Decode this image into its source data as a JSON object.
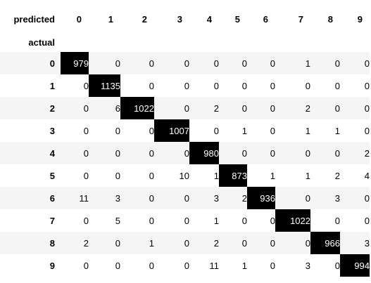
{
  "chart_data": {
    "type": "table",
    "corner_label_columns": "predicted",
    "corner_label_rows": "actual",
    "columns": [
      "0",
      "1",
      "2",
      "3",
      "4",
      "5",
      "6",
      "7",
      "8",
      "9"
    ],
    "rows": [
      "0",
      "1",
      "2",
      "3",
      "4",
      "5",
      "6",
      "7",
      "8",
      "9"
    ],
    "values": [
      [
        979,
        0,
        0,
        0,
        0,
        0,
        0,
        1,
        0,
        0
      ],
      [
        0,
        1135,
        0,
        0,
        0,
        0,
        0,
        0,
        0,
        0
      ],
      [
        0,
        6,
        1022,
        0,
        2,
        0,
        0,
        2,
        0,
        0
      ],
      [
        0,
        0,
        0,
        1007,
        0,
        1,
        0,
        1,
        1,
        0
      ],
      [
        0,
        0,
        0,
        0,
        980,
        0,
        0,
        0,
        0,
        2
      ],
      [
        0,
        0,
        0,
        10,
        1,
        873,
        1,
        1,
        2,
        4
      ],
      [
        11,
        3,
        0,
        0,
        3,
        2,
        936,
        0,
        3,
        0
      ],
      [
        0,
        5,
        0,
        0,
        1,
        0,
        0,
        1022,
        0,
        0
      ],
      [
        2,
        0,
        1,
        0,
        2,
        0,
        0,
        0,
        966,
        3
      ],
      [
        0,
        0,
        0,
        0,
        11,
        1,
        0,
        3,
        0,
        994
      ]
    ],
    "diagonal_highlight_color": "#000000",
    "stripe_color": "#f5f5f5"
  }
}
